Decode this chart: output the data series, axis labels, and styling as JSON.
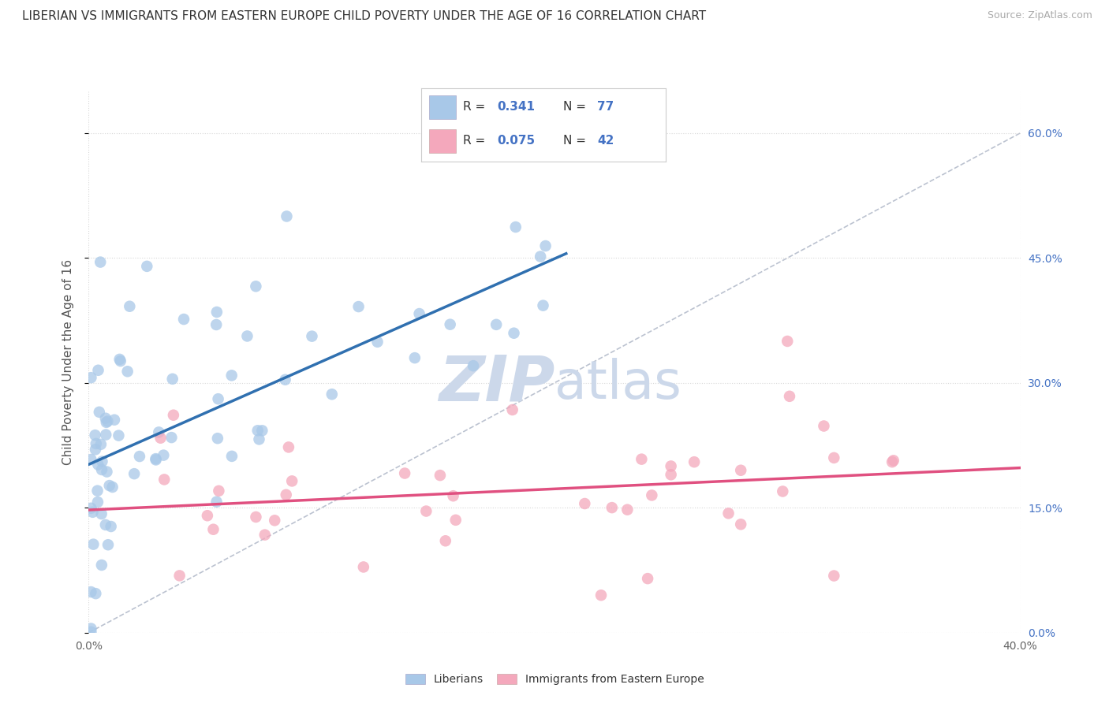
{
  "title": "LIBERIAN VS IMMIGRANTS FROM EASTERN EUROPE CHILD POVERTY UNDER THE AGE OF 16 CORRELATION CHART",
  "source": "Source: ZipAtlas.com",
  "ylabel": "Child Poverty Under the Age of 16",
  "xlim": [
    0.0,
    0.4
  ],
  "ylim": [
    0.0,
    0.65
  ],
  "y_ticks_right": [
    0.0,
    0.15,
    0.3,
    0.45,
    0.6
  ],
  "y_tick_labels_right": [
    "0.0%",
    "15.0%",
    "30.0%",
    "45.0%",
    "60.0%"
  ],
  "x_ticks": [
    0.0,
    0.4
  ],
  "x_tick_labels": [
    "0.0%",
    "40.0%"
  ],
  "legend_blue_R": "0.341",
  "legend_blue_N": "77",
  "legend_pink_R": "0.075",
  "legend_pink_N": "42",
  "blue_scatter_color": "#a8c8e8",
  "pink_scatter_color": "#f4a8bc",
  "blue_line_color": "#3070b0",
  "pink_line_color": "#e05080",
  "diagonal_color": "#b0b8c8",
  "watermark_color": "#ccd8ea",
  "background_color": "#ffffff",
  "grid_color": "#d8d8d8",
  "tick_color": "#4472c4",
  "title_color": "#333333",
  "label_color": "#555555",
  "right_tick_color": "#4472c4"
}
